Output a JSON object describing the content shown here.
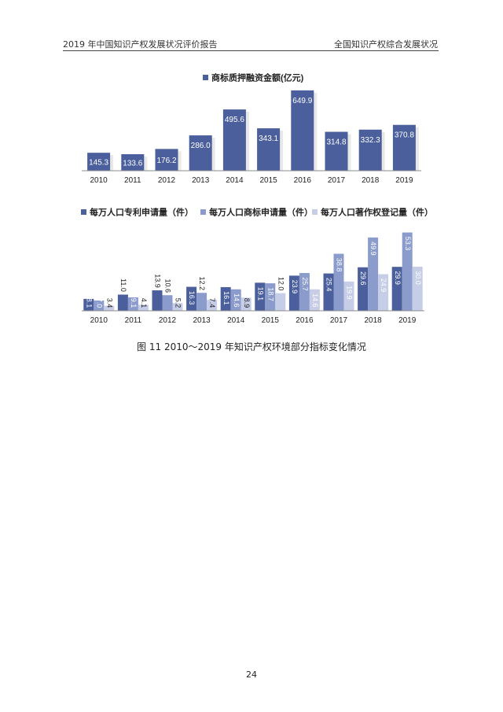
{
  "header": {
    "left": "2019 年中国知识产权发展状况评价报告",
    "right": "全国知识产权综合发展状况"
  },
  "caption": "图 11   2010～2019 年知识产权环境部分指标变化情况",
  "page_number": "24",
  "colors": {
    "dark_blue": "#4a5f9c",
    "mid_blue": "#8b9ccc",
    "light_blue": "#c6cde6",
    "axis": "#8c8c8c"
  },
  "chart_data": [
    {
      "type": "bar",
      "legend_position": "top",
      "categories": [
        "2010",
        "2011",
        "2012",
        "2013",
        "2014",
        "2015",
        "2016",
        "2017",
        "2018",
        "2019"
      ],
      "series": [
        {
          "name": "商标质押融资金额(亿元)",
          "values": [
            145.3,
            133.6,
            176.2,
            286.0,
            495.6,
            343.1,
            649.9,
            314.8,
            332.3,
            370.8
          ],
          "labels": [
            "145.3",
            "133.6",
            "176.2",
            "286.0",
            "495.6",
            "343.1",
            "649.9",
            "314.8",
            "332.3",
            "370.8"
          ]
        }
      ],
      "ylim": [
        0,
        700
      ],
      "grid": false
    },
    {
      "type": "bar",
      "legend_position": "top",
      "categories": [
        "2010",
        "2011",
        "2012",
        "2013",
        "2014",
        "2015",
        "2016",
        "2017",
        "2018",
        "2019"
      ],
      "series": [
        {
          "name": "每万人口专利申请量（件）",
          "values": [
            8.1,
            11.0,
            13.9,
            16.3,
            16.1,
            19.1,
            23.9,
            25.4,
            29.6,
            29.9
          ],
          "labels": [
            "8.1",
            "11.0",
            "13.9",
            "16.3",
            "16.1",
            "19.1",
            "23.9",
            "25.4",
            "29.6",
            "29.9"
          ]
        },
        {
          "name": "每万人口商标申请量（件）",
          "values": [
            7.0,
            9.1,
            10.6,
            12.2,
            14.6,
            18.7,
            25.7,
            38.8,
            49.9,
            53.3
          ],
          "labels": [
            "7.0",
            "9.1",
            "10.6",
            "12.2",
            "14.6",
            "18.7",
            "25.7",
            "38.8",
            "49.9",
            "53.3"
          ]
        },
        {
          "name": "每万人口著作权登记量（件）",
          "values": [
            3.4,
            4.1,
            5.2,
            7.4,
            8.9,
            12.0,
            14.6,
            19.9,
            24.9,
            30.0
          ],
          "labels": [
            "3.4",
            "4.1",
            "5.2",
            "7.4",
            "8.9",
            "12.0",
            "14.6",
            "19.9",
            "24.9",
            "30.0"
          ]
        }
      ],
      "ylim": [
        0,
        60
      ],
      "grid": false
    }
  ]
}
